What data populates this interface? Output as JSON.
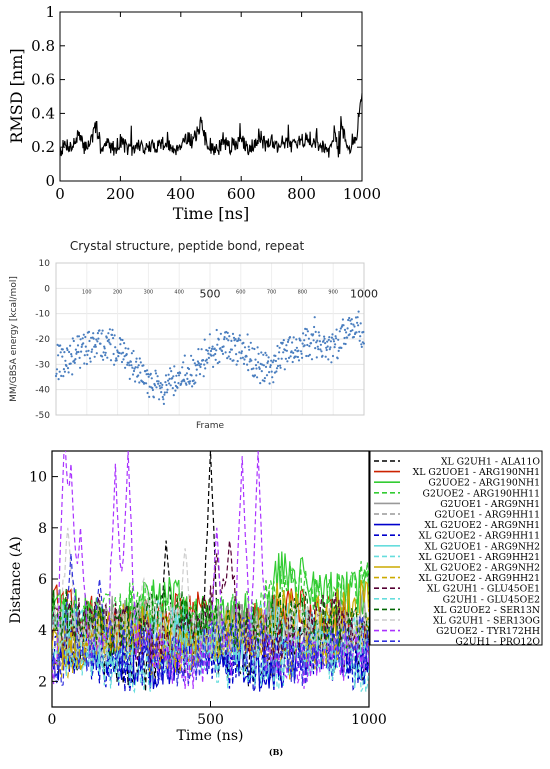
{
  "caption": "(B)",
  "chart_data": [
    {
      "id": "rmsd",
      "type": "line",
      "xlabel": "Time [ns]",
      "ylabel": "RMSD [nm]",
      "xlim": [
        0,
        1000
      ],
      "ylim": [
        0,
        1
      ],
      "xticks": [
        "0",
        "200",
        "400",
        "600",
        "800",
        "1000"
      ],
      "yticks": [
        "0",
        "0.2",
        "0.4",
        "0.6",
        "0.8",
        "1"
      ],
      "color": "#000000",
      "series": [
        {
          "x": [
            0,
            20,
            40,
            60,
            80,
            100,
            120,
            140,
            160,
            180,
            200,
            220,
            240,
            260,
            280,
            300,
            320,
            340,
            360,
            380,
            400,
            420,
            440,
            460,
            470,
            480,
            490,
            500,
            520,
            540,
            560,
            580,
            600,
            620,
            640,
            660,
            680,
            700,
            720,
            740,
            760,
            780,
            800,
            820,
            840,
            860,
            880,
            900,
            910,
            920,
            925,
            930,
            940,
            950,
            960,
            970,
            980,
            990,
            1000
          ],
          "y": [
            0.18,
            0.22,
            0.2,
            0.27,
            0.2,
            0.23,
            0.32,
            0.2,
            0.22,
            0.19,
            0.24,
            0.2,
            0.17,
            0.22,
            0.19,
            0.2,
            0.21,
            0.23,
            0.2,
            0.19,
            0.22,
            0.26,
            0.23,
            0.31,
            0.36,
            0.25,
            0.22,
            0.2,
            0.18,
            0.23,
            0.2,
            0.22,
            0.24,
            0.19,
            0.22,
            0.27,
            0.21,
            0.25,
            0.2,
            0.24,
            0.22,
            0.2,
            0.23,
            0.27,
            0.22,
            0.21,
            0.2,
            0.22,
            0.32,
            0.18,
            0.15,
            0.34,
            0.28,
            0.2,
            0.18,
            0.25,
            0.22,
            0.4,
            0.5
          ]
        }
      ]
    },
    {
      "id": "mmgbsa",
      "type": "scatter",
      "title": "Crystal structure, peptide bond, repeat",
      "xlabel": "Frame",
      "ylabel": "MM/GBSA energy [kcal/mol]",
      "xlim": [
        0,
        1000
      ],
      "ylim": [
        -50,
        10
      ],
      "yticks": [
        "10",
        "0",
        "-10",
        "-20",
        "-30",
        "-40",
        "-50"
      ],
      "xticks_small": [
        "100",
        "200",
        "300",
        "400",
        "600",
        "700",
        "800",
        "900"
      ],
      "xticks_large": [
        "500",
        "1000"
      ],
      "color": "#4a7ebf",
      "trend": {
        "x": [
          0,
          50,
          100,
          150,
          200,
          250,
          300,
          350,
          400,
          450,
          500,
          550,
          600,
          650,
          700,
          750,
          800,
          850,
          900,
          950,
          1000
        ],
        "y": [
          -30,
          -27,
          -24,
          -22,
          -24,
          -30,
          -38,
          -40,
          -35,
          -33,
          -24,
          -22,
          -25,
          -30,
          -32,
          -24,
          -22,
          -21,
          -25,
          -15,
          -17
        ]
      }
    },
    {
      "id": "distance",
      "type": "line",
      "xlabel": "Time (ns)",
      "ylabel": "Distance (A)",
      "xlim": [
        0,
        1000
      ],
      "ylim": [
        1,
        11
      ],
      "xticks": [
        "0",
        "500",
        "1000"
      ],
      "yticks": [
        "2",
        "4",
        "6",
        "8",
        "10"
      ],
      "legend_position": "right",
      "series": [
        {
          "name": "XL G2UH1 - ALA11O",
          "color": "#000000",
          "dash": "5,3",
          "base": 3.0
        },
        {
          "name": "XL G2UOE1 - ARG190NH1",
          "color": "#cc2200",
          "dash": "",
          "base": 4.4
        },
        {
          "name": "G2UOE2 - ARG190NH1",
          "color": "#33cc33",
          "dash": "",
          "base": 4.7
        },
        {
          "name": "G2UOE2 - ARG190HH11",
          "color": "#33cc33",
          "dash": "5,3",
          "base": 4.6
        },
        {
          "name": "G2UOE1 - ARG9NH1",
          "color": "#999999",
          "dash": "",
          "base": 4.2
        },
        {
          "name": "G2UOE1 - ARG9HH11",
          "color": "#999999",
          "dash": "5,3",
          "base": 3.8
        },
        {
          "name": "XL G2UOE2 - ARG9NH1",
          "color": "#0000cc",
          "dash": "",
          "base": 3.0
        },
        {
          "name": "XL G2UOE2 - ARG9HH11",
          "color": "#0000cc",
          "dash": "5,3",
          "base": 2.9
        },
        {
          "name": "XL G2UOE1 - ARG9NH2",
          "color": "#66dddd",
          "dash": "",
          "base": 4.0
        },
        {
          "name": "XL G2UOE1 - ARG9HH21",
          "color": "#66dddd",
          "dash": "5,3",
          "base": 3.6
        },
        {
          "name": "XL G2UOE2 - ARG9NH2",
          "color": "#ccaa00",
          "dash": "",
          "base": 3.8
        },
        {
          "name": "XL G2UOE2 - ARG9HH21",
          "color": "#ccaa00",
          "dash": "5,3",
          "base": 3.4
        },
        {
          "name": "XL G2UH1 - GLU45OE1",
          "color": "#550033",
          "dash": "5,3",
          "base": 4.1
        },
        {
          "name": "G2UH1 - GLU45OE2",
          "color": "#66dddd",
          "dash": "5,3",
          "base": 2.8
        },
        {
          "name": "XL G2UOE2 - SER13N",
          "color": "#006600",
          "dash": "5,3",
          "base": 4.3
        },
        {
          "name": "XL G2UH1 - SER13OG",
          "color": "#cccccc",
          "dash": "5,3",
          "base": 4.0
        },
        {
          "name": "G2UOE2 - TYR172HH",
          "color": "#aa33ff",
          "dash": "5,3",
          "base": 3.0
        },
        {
          "name": "G2UH1 - PRO12O",
          "color": "#3333dd",
          "dash": "5,3",
          "base": 3.2
        }
      ]
    }
  ]
}
